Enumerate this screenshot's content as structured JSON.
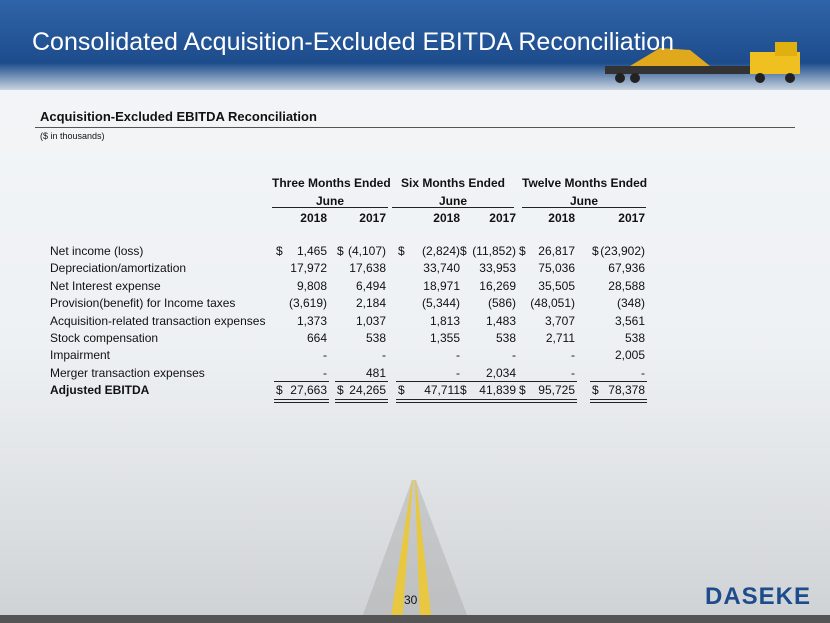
{
  "header": {
    "title": "Consolidated Acquisition-Excluded EBITDA Reconciliation"
  },
  "section": {
    "title": "Acquisition-Excluded EBITDA Reconciliation",
    "subtitle": "($ in thousands)"
  },
  "table": {
    "groups": [
      {
        "line1": "Three Months Ended",
        "line2": "June"
      },
      {
        "line1": "Six Months Ended",
        "line2": "June"
      },
      {
        "line1": "Twelve Months Ended",
        "line2": "June"
      }
    ],
    "years": [
      "2018",
      "2017",
      "2018",
      "2017",
      "2018",
      "2017"
    ],
    "rows": [
      {
        "label": "Net income (loss)",
        "currency": "$",
        "cells": [
          "1,465",
          "(4,107)",
          "(2,824)",
          "(11,852)",
          "26,817",
          "(23,902)"
        ]
      },
      {
        "label": "Depreciation/amortization",
        "cells": [
          "17,972",
          "17,638",
          "33,740",
          "33,953",
          "75,036",
          "67,936"
        ]
      },
      {
        "label": "Net Interest expense",
        "cells": [
          "9,808",
          "6,494",
          "18,971",
          "16,269",
          "35,505",
          "28,588"
        ]
      },
      {
        "label": "Provision(benefit) for Income taxes",
        "cells": [
          "(3,619)",
          "2,184",
          "(5,344)",
          "(586)",
          "(48,051)",
          "(348)"
        ]
      },
      {
        "label": "Acquisition-related transaction expenses",
        "cells": [
          "1,373",
          "1,037",
          "1,813",
          "1,483",
          "3,707",
          "3,561"
        ]
      },
      {
        "label": "Stock compensation",
        "cells": [
          "664",
          "538",
          "1,355",
          "538",
          "2,711",
          "538"
        ]
      },
      {
        "label": "Impairment",
        "cells": [
          "-",
          "-",
          "-",
          "-",
          "-",
          "2,005"
        ]
      },
      {
        "label": "Merger transaction expenses",
        "cells": [
          "-",
          "481",
          "-",
          "2,034",
          "-",
          "-"
        ]
      },
      {
        "label": "Adjusted EBITDA",
        "currency": "$",
        "total": true,
        "cells": [
          "27,663",
          "24,265",
          "47,711",
          "41,839",
          "95,725",
          "78,378"
        ]
      }
    ]
  },
  "footer": {
    "page": "30",
    "logo": "DASEKE"
  }
}
